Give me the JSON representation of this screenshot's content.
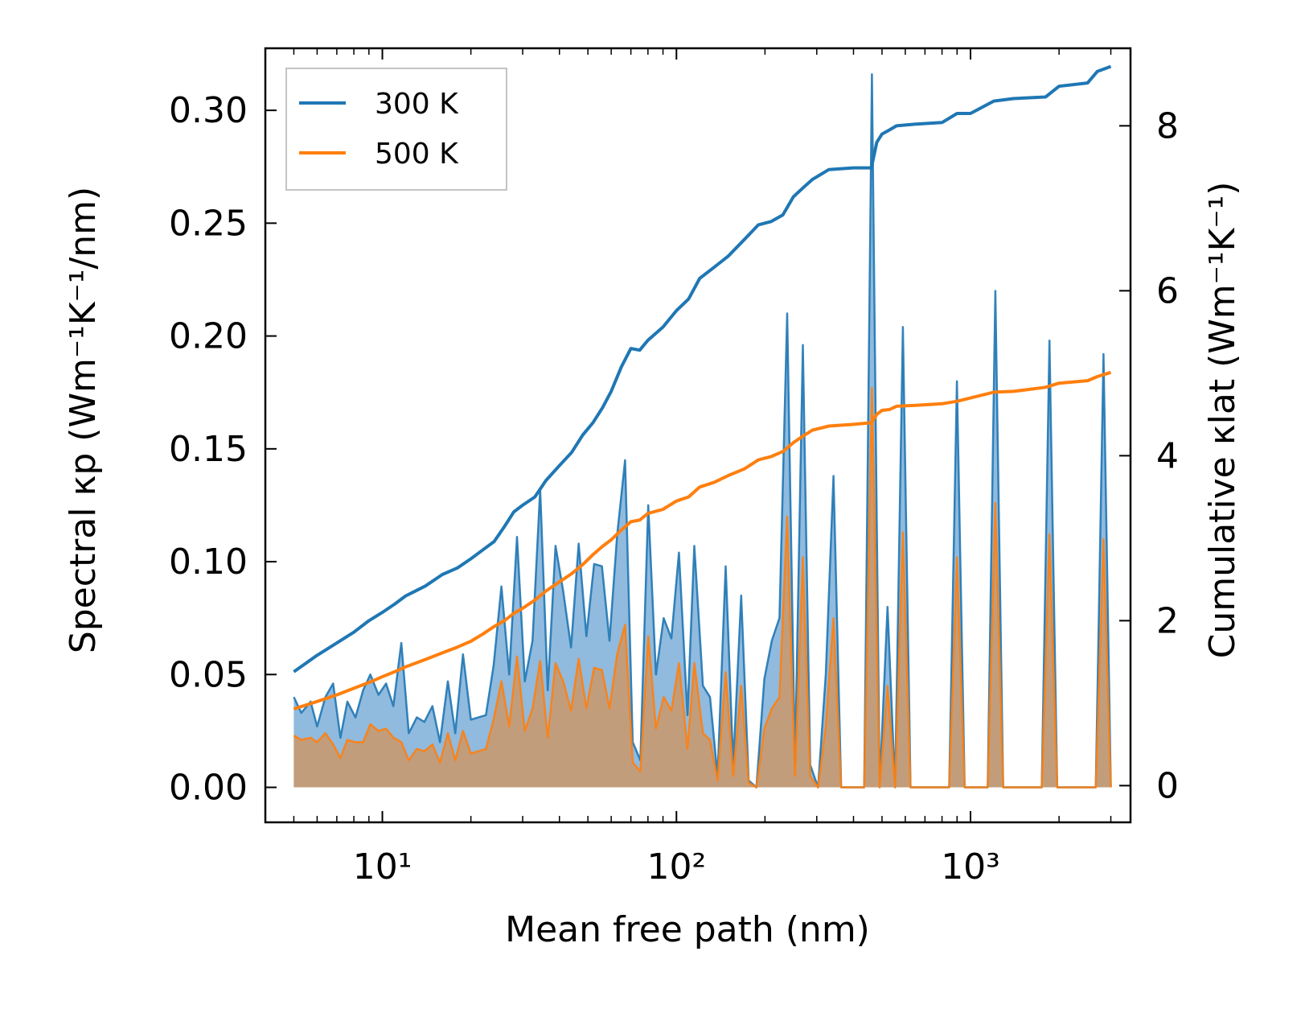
{
  "chart_data": {
    "type": "line",
    "xlabel": "Mean free path (nm)",
    "ylabel_left": "Spectral κp (Wm⁻¹K⁻¹/nm)",
    "ylabel_right": "Cumulative κlat (Wm⁻¹K⁻¹)",
    "xscale": "log",
    "xlim": [
      4,
      3500
    ],
    "ylim_left": [
      -0.0155,
      0.3275
    ],
    "ylim_right": [
      -0.445,
      8.94
    ],
    "x_tick_labels": [
      "10¹",
      "10²",
      "10³"
    ],
    "x_tick_values": [
      10,
      100,
      1000
    ],
    "y_left_tick_labels": [
      "0.00",
      "0.05",
      "0.10",
      "0.15",
      "0.20",
      "0.25",
      "0.30"
    ],
    "y_left_tick_values": [
      0,
      0.05,
      0.1,
      0.15,
      0.2,
      0.25,
      0.3
    ],
    "y_right_tick_labels": [
      "0",
      "2",
      "4",
      "6",
      "8"
    ],
    "y_right_tick_values": [
      0,
      2,
      4,
      6,
      8
    ],
    "legend": {
      "position": "top-left",
      "entries": [
        {
          "label": "300 K",
          "color": "#1f77b4"
        },
        {
          "label": "500 K",
          "color": "#ff7f0e"
        }
      ]
    },
    "spectral_series": [
      {
        "name": "300 K",
        "color": "#1f77b4",
        "fill": "#8ab6dc",
        "x": [
          5,
          5.3,
          5.7,
          6,
          6.4,
          6.8,
          7.2,
          7.6,
          8.1,
          8.6,
          9.1,
          9.7,
          10.3,
          10.9,
          11.6,
          12.3,
          13.1,
          13.9,
          14.8,
          15.7,
          16.7,
          17.7,
          18.8,
          20,
          21.2,
          22.5,
          23.9,
          25.4,
          27,
          28.7,
          30.5,
          32.4,
          34.4,
          36.5,
          38.8,
          41.2,
          43.8,
          46.5,
          49.4,
          52.5,
          55.8,
          59.2,
          62.9,
          66.9,
          71,
          75.4,
          80.2,
          85.2,
          90.5,
          96.1,
          102,
          109,
          115,
          123,
          130,
          138,
          147,
          156,
          166,
          176,
          187,
          199,
          211,
          224,
          238,
          253,
          269,
          285,
          303,
          322,
          342,
          363,
          386,
          410,
          435,
          462,
          491,
          522,
          554,
          589,
          625,
          664,
          706,
          750,
          796,
          846,
          899,
          955,
          1014,
          1077,
          1144,
          1215,
          1291,
          1372,
          1457,
          1548,
          1644,
          1747,
          1855,
          1971,
          2094,
          2224,
          2363,
          2510,
          2666,
          2832,
          3000
        ],
        "y": [
          0.04,
          0.033,
          0.038,
          0.027,
          0.04,
          0.046,
          0.022,
          0.038,
          0.031,
          0.043,
          0.05,
          0.041,
          0.046,
          0.036,
          0.064,
          0.024,
          0.031,
          0.029,
          0.036,
          0.02,
          0.047,
          0.024,
          0.059,
          0.03,
          0.031,
          0.032,
          0.054,
          0.089,
          0.05,
          0.111,
          0.047,
          0.065,
          0.132,
          0.043,
          0.107,
          0.087,
          0.062,
          0.108,
          0.067,
          0.099,
          0.098,
          0.065,
          0.112,
          0.145,
          0.02,
          0.012,
          0.125,
          0.05,
          0.075,
          0.066,
          0.104,
          0.032,
          0.107,
          0.045,
          0.04,
          0.005,
          0.098,
          0.01,
          0.085,
          0.003,
          0.0,
          0.048,
          0.065,
          0.075,
          0.21,
          0.01,
          0.196,
          0.01,
          0.0,
          0.05,
          0.138,
          0.0,
          0.0,
          0.0,
          0.0,
          0.316,
          0.0,
          0.08,
          0.0,
          0.204,
          0.0,
          0.0,
          0.0,
          0.0,
          0.0,
          0.0,
          0.18,
          0.0,
          0.0,
          0.0,
          0.0,
          0.22,
          0.0,
          0.0,
          0.0,
          0.0,
          0.0,
          0.0,
          0.198,
          0.0,
          0.0,
          0.0,
          0.0,
          0.0,
          0.0,
          0.192,
          0.0
        ]
      },
      {
        "name": "500 K",
        "color": "#ff7f0e",
        "fill": "#c89a70",
        "x": [
          5,
          5.3,
          5.7,
          6,
          6.4,
          6.8,
          7.2,
          7.6,
          8.1,
          8.6,
          9.1,
          9.7,
          10.3,
          10.9,
          11.6,
          12.3,
          13.1,
          13.9,
          14.8,
          15.7,
          16.7,
          17.7,
          18.8,
          20,
          21.2,
          22.5,
          23.9,
          25.4,
          27,
          28.7,
          30.5,
          32.4,
          34.4,
          36.5,
          38.8,
          41.2,
          43.8,
          46.5,
          49.4,
          52.5,
          55.8,
          59.2,
          62.9,
          66.9,
          71,
          75.4,
          80.2,
          85.2,
          90.5,
          96.1,
          102,
          109,
          115,
          123,
          130,
          138,
          147,
          156,
          166,
          176,
          187,
          199,
          211,
          224,
          238,
          253,
          269,
          285,
          303,
          322,
          342,
          363,
          386,
          410,
          435,
          462,
          491,
          522,
          554,
          589,
          625,
          664,
          706,
          750,
          796,
          846,
          899,
          955,
          1014,
          1077,
          1144,
          1215,
          1291,
          1372,
          1457,
          1548,
          1644,
          1747,
          1855,
          1971,
          2094,
          2224,
          2363,
          2510,
          2666,
          2832,
          3000
        ],
        "y": [
          0.023,
          0.021,
          0.022,
          0.02,
          0.024,
          0.019,
          0.013,
          0.021,
          0.02,
          0.02,
          0.028,
          0.025,
          0.026,
          0.022,
          0.02,
          0.012,
          0.017,
          0.016,
          0.019,
          0.011,
          0.024,
          0.012,
          0.025,
          0.015,
          0.016,
          0.017,
          0.03,
          0.047,
          0.027,
          0.058,
          0.025,
          0.035,
          0.056,
          0.022,
          0.055,
          0.047,
          0.034,
          0.057,
          0.035,
          0.053,
          0.052,
          0.035,
          0.059,
          0.072,
          0.011,
          0.007,
          0.067,
          0.026,
          0.04,
          0.034,
          0.055,
          0.017,
          0.055,
          0.024,
          0.021,
          0.003,
          0.051,
          0.005,
          0.045,
          0.002,
          0.0,
          0.026,
          0.035,
          0.04,
          0.12,
          0.005,
          0.102,
          0.005,
          0.0,
          0.027,
          0.075,
          0.0,
          0.0,
          0.0,
          0.0,
          0.177,
          0.0,
          0.045,
          0.0,
          0.113,
          0.0,
          0.0,
          0.0,
          0.0,
          0.0,
          0.0,
          0.102,
          0.0,
          0.0,
          0.0,
          0.0,
          0.126,
          0.0,
          0.0,
          0.0,
          0.0,
          0.0,
          0.0,
          0.112,
          0.0,
          0.0,
          0.0,
          0.0,
          0.0,
          0.0,
          0.11,
          0.0
        ]
      }
    ],
    "cumulative_series": [
      {
        "name": "300 K",
        "color": "#1f77b4",
        "x": [
          5,
          6,
          7,
          8,
          9,
          10,
          11,
          12,
          14,
          16,
          18,
          20,
          22,
          24,
          26,
          28,
          30,
          33,
          36,
          40,
          44,
          48,
          52,
          56,
          60,
          65,
          70,
          75,
          80,
          90,
          100,
          110,
          120,
          135,
          150,
          170,
          190,
          210,
          230,
          250,
          270,
          290,
          330,
          400,
          460,
          480,
          500,
          530,
          560,
          650,
          800,
          900,
          1000,
          1200,
          1400,
          1800,
          2000,
          2500,
          2700,
          3000
        ],
        "y": [
          1.38,
          1.58,
          1.73,
          1.86,
          2.0,
          2.1,
          2.2,
          2.3,
          2.42,
          2.56,
          2.64,
          2.75,
          2.86,
          2.96,
          3.14,
          3.32,
          3.4,
          3.5,
          3.7,
          3.88,
          4.04,
          4.25,
          4.4,
          4.58,
          4.78,
          5.08,
          5.3,
          5.28,
          5.4,
          5.56,
          5.76,
          5.9,
          6.15,
          6.29,
          6.42,
          6.62,
          6.8,
          6.84,
          6.92,
          7.14,
          7.25,
          7.35,
          7.47,
          7.49,
          7.49,
          7.8,
          7.9,
          7.95,
          8.0,
          8.02,
          8.04,
          8.15,
          8.15,
          8.3,
          8.33,
          8.35,
          8.48,
          8.52,
          8.66,
          8.72
        ]
      },
      {
        "name": "500 K",
        "color": "#ff7f0e",
        "x": [
          5,
          6,
          7,
          8,
          9,
          10,
          11,
          12,
          14,
          16,
          18,
          20,
          22,
          24,
          26,
          28,
          30,
          33,
          36,
          40,
          44,
          48,
          52,
          56,
          60,
          65,
          70,
          75,
          80,
          90,
          100,
          110,
          120,
          135,
          150,
          170,
          190,
          210,
          230,
          250,
          270,
          290,
          330,
          400,
          460,
          480,
          500,
          530,
          560,
          650,
          800,
          900,
          1000,
          1200,
          1400,
          1800,
          2000,
          2500,
          2700,
          3000
        ],
        "y": [
          0.93,
          1.02,
          1.1,
          1.18,
          1.25,
          1.32,
          1.38,
          1.44,
          1.53,
          1.61,
          1.68,
          1.75,
          1.84,
          1.93,
          2.0,
          2.09,
          2.15,
          2.25,
          2.36,
          2.47,
          2.57,
          2.68,
          2.8,
          2.9,
          2.98,
          3.1,
          3.2,
          3.22,
          3.3,
          3.35,
          3.45,
          3.5,
          3.62,
          3.68,
          3.76,
          3.84,
          3.95,
          3.99,
          4.05,
          4.16,
          4.24,
          4.31,
          4.36,
          4.38,
          4.4,
          4.5,
          4.55,
          4.56,
          4.6,
          4.61,
          4.63,
          4.66,
          4.7,
          4.77,
          4.78,
          4.83,
          4.88,
          4.91,
          4.96,
          5.01
        ]
      }
    ]
  }
}
